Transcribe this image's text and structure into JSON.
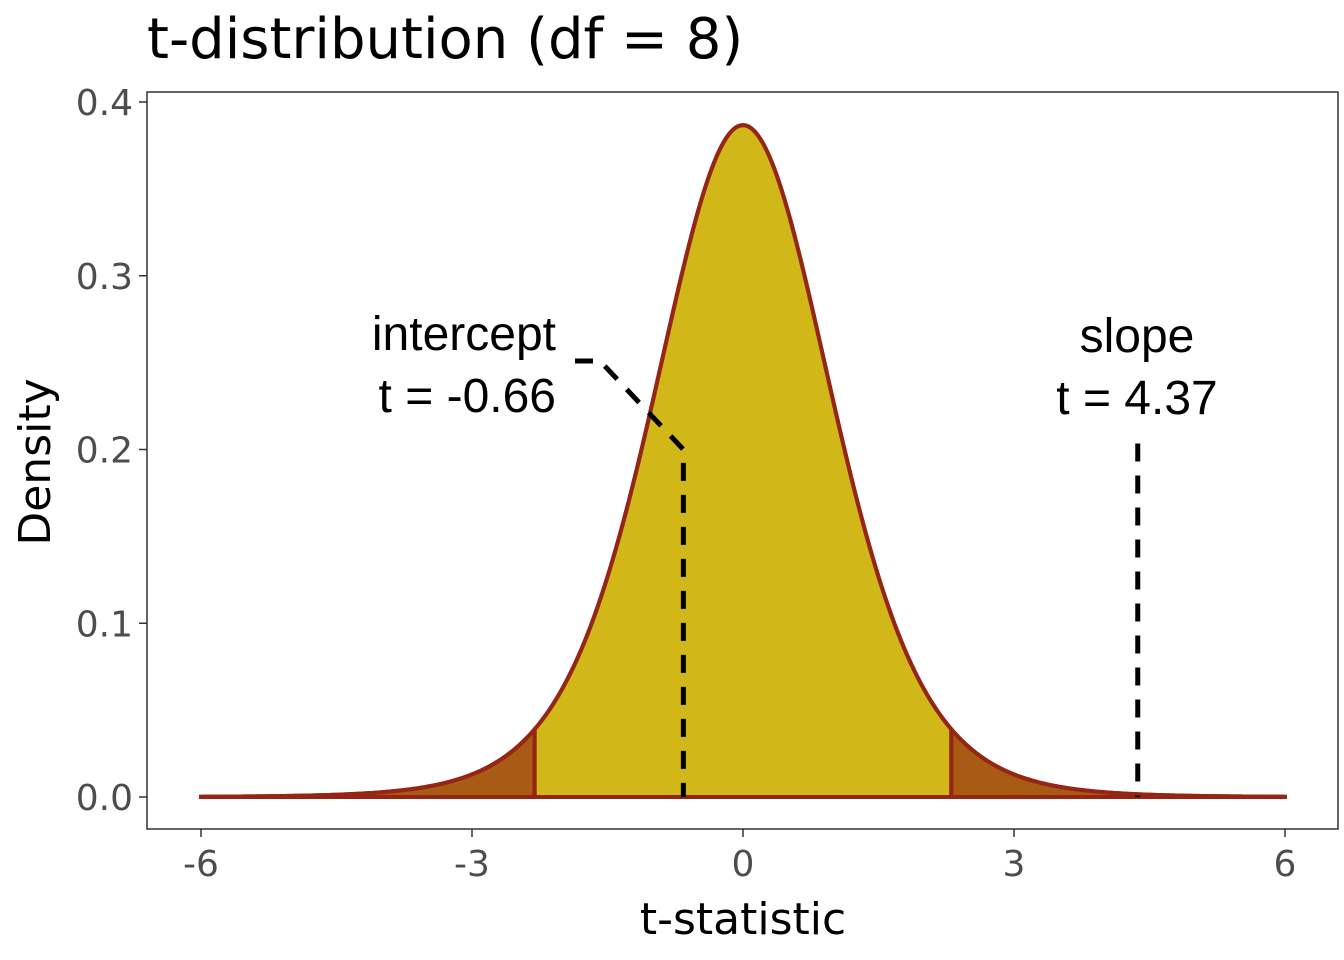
{
  "chart_data": {
    "type": "area",
    "title": "t-distribution (df = 8)",
    "xlabel": "t-statistic",
    "ylabel": "Density",
    "df": 8,
    "xlim": [
      -6,
      6
    ],
    "ylim": [
      0,
      0.4
    ],
    "x_ticks": [
      -6,
      -3,
      0,
      3,
      6
    ],
    "x_tick_labels": [
      "-6",
      "-3",
      "0",
      "3",
      "6"
    ],
    "y_ticks": [
      0.0,
      0.1,
      0.2,
      0.3,
      0.4
    ],
    "y_tick_labels": [
      "0.0",
      "0.1",
      "0.2",
      "0.3",
      "0.4"
    ],
    "critical_t": 2.306,
    "grid": false,
    "colors": {
      "center_fill": "#D1B717",
      "tail_fill": "#A95A14",
      "curve": "#962614",
      "annotation": "#000000"
    },
    "annotations": [
      {
        "name": "intercept",
        "line1": "intercept",
        "line2": "t = -0.66",
        "t": -0.66,
        "line_top": 0.2
      },
      {
        "name": "slope",
        "line1": "slope",
        "line2": "t = 4.37",
        "t": 4.37,
        "line_top": 0.2
      }
    ]
  }
}
